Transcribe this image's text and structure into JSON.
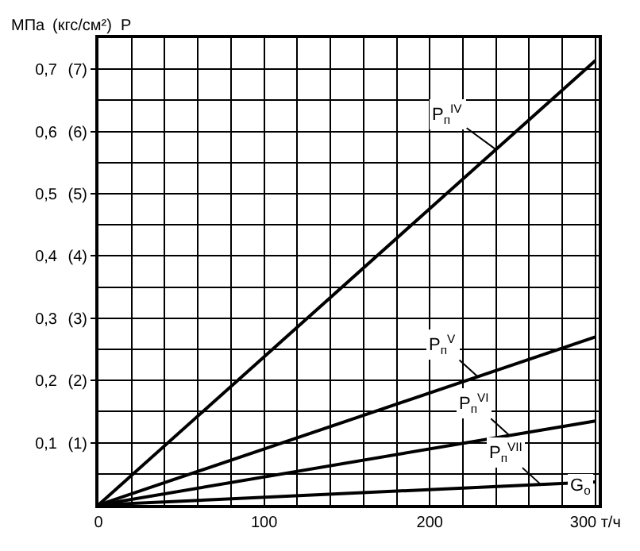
{
  "chart_data": {
    "type": "line",
    "xlabel": "G$_{о}$",
    "ylabel": "МПа",
    "y2label": "(кгс/см²)  P",
    "x": [
      0,
      300
    ],
    "series": [
      {
        "color": "#000000",
        "values": [
          0,
          0.714
        ]
      },
      {
        "color": "#000000",
        "values": [
          0,
          0.27
        ]
      },
      {
        "color": "#000000",
        "values": [
          0,
          0.135
        ]
      },
      {
        "color": "#000000",
        "values": [
          0,
          0.037
        ]
      }
    ],
    "annotations": [
      {
        "text": "P$_{п}$$^{IV}$",
        "x": 240,
        "y": 0.571
      },
      {
        "text": "P$_{п}$$^{V}$",
        "x": 229,
        "y": 0.206
      },
      {
        "text": "P$_{п}$$^{VI}$",
        "x": 248,
        "y": 0.112
      },
      {
        "text": "P$_{п}$$^{VII}$",
        "x": 267,
        "y": 0.033
      }
    ],
    "xlim": [
      0,
      302
    ],
    "ylim": [
      0,
      0.75
    ],
    "xticks": [
      0,
      {
        "value": 20,
        "label": null
      },
      {
        "value": 40,
        "label": null
      },
      {
        "value": 60,
        "label": null
      },
      {
        "value": 80,
        "label": null
      },
      100,
      {
        "value": 120,
        "label": null
      },
      {
        "value": 140,
        "label": null
      },
      {
        "value": 160,
        "label": null
      },
      {
        "value": 180,
        "label": null
      },
      200,
      {
        "value": 220,
        "label": null
      },
      {
        "value": 240,
        "label": null
      },
      {
        "value": 260,
        "label": null
      },
      {
        "value": 280,
        "label": null
      },
      {
        "value": 300,
        "label": "300 т/ч"
      }
    ],
    "yticks": [
      {
        "value": 0.05,
        "label": null
      },
      {
        "value": 0.1,
        "label": "0,1"
      },
      {
        "value": 0.15,
        "label": null
      },
      {
        "value": 0.2,
        "label": "0,2"
      },
      {
        "value": 0.25,
        "label": null
      },
      {
        "value": 0.3,
        "label": "0,3"
      },
      {
        "value": 0.35,
        "label": null
      },
      {
        "value": 0.4,
        "label": "0,4"
      },
      {
        "value": 0.45,
        "label": null
      },
      {
        "value": 0.5,
        "label": "0,5"
      },
      {
        "value": 0.55,
        "label": null
      },
      {
        "value": 0.6,
        "label": "0,6"
      },
      {
        "value": 0.65,
        "label": null
      },
      {
        "value": 0.7,
        "label": "0,7"
      }
    ],
    "y2lim": [
      0,
      7.5
    ],
    "y2ticks": [
      {
        "value": 1,
        "label": "(1)"
      },
      {
        "value": 2,
        "label": "(2)"
      },
      {
        "value": 3,
        "label": "(3)"
      },
      {
        "value": 4,
        "label": "(4)"
      },
      {
        "value": 5,
        "label": "(5)"
      },
      {
        "value": 6,
        "label": "(6)"
      },
      {
        "value": 7,
        "label": "(7)"
      }
    ],
    "grid": true,
    "marker": "none",
    "line_style": "solid"
  }
}
